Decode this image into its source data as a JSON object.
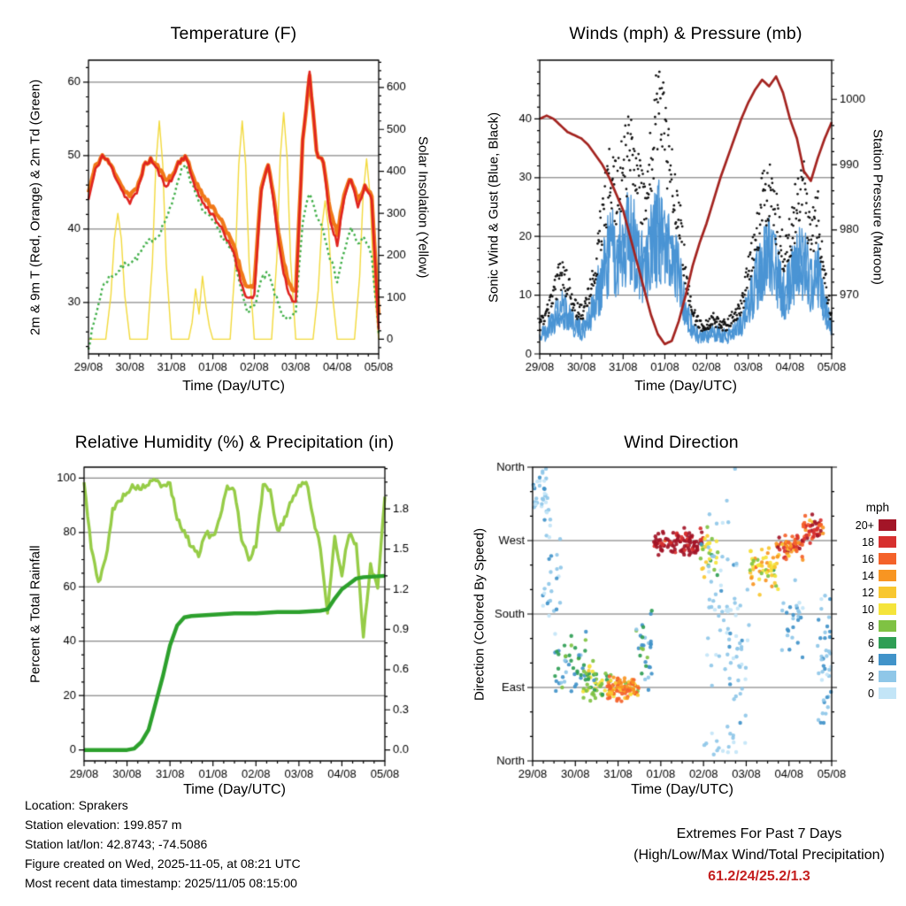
{
  "x_axis": {
    "label": "Time (Day/UTC)",
    "tick_hours": [
      0,
      24,
      48,
      72,
      96,
      120,
      144,
      168
    ],
    "tick_labels": [
      "29/08",
      "30/08",
      "31/08",
      "01/08",
      "02/08",
      "03/08",
      "04/08",
      "05/08"
    ],
    "minor_step_hours": 6,
    "range_hours": [
      0,
      168
    ],
    "sample_hours_step4": [
      0,
      4,
      8,
      12,
      16,
      20,
      24,
      28,
      32,
      36,
      40,
      44,
      48,
      52,
      56,
      60,
      64,
      68,
      72,
      76,
      80,
      84,
      88,
      92,
      96,
      100,
      104,
      108,
      112,
      116,
      120,
      124,
      128,
      132,
      136,
      140,
      144,
      148,
      152,
      156,
      160,
      164,
      168
    ]
  },
  "footer": {
    "lines": [
      "Location: Sprakers",
      "Station elevation: 199.857 m",
      "Station lat/lon: 42.8743; -74.5086",
      "Figure created on Wed, 2025-11-05, at 08:21 UTC",
      "Most recent data timestamp: 2025/11/05 08:15:00"
    ]
  },
  "extremes": {
    "title": "Extremes For Past 7 Days",
    "subtitle": "(High/Low/Max Wind/Total Precipitation)",
    "values": "61.2/24/25.2/1.3",
    "color": "#c41f1f"
  },
  "chart_data": [
    {
      "id": "temperature",
      "type": "line",
      "title": "Temperature (F)",
      "ylabel_left": "2m & 9m T (Red, Orange) & 2m Td (Green)",
      "ylabel_right": "Solar Insolation (Yellow)",
      "ylim_left": [
        23,
        63
      ],
      "yticks_left": [
        30,
        40,
        50,
        60
      ],
      "yminor_left": 2,
      "ylim_right": [
        -35,
        665
      ],
      "yticks_right": [
        0,
        100,
        200,
        300,
        400,
        500,
        600
      ],
      "yminor_right": 20,
      "gridlines_left": [
        30,
        40,
        50,
        60
      ],
      "series": [
        {
          "name": "9m_temp_orange",
          "color": "#f07818",
          "width": 4.4,
          "axis": "left",
          "y": [
            45,
            48.5,
            50,
            49,
            47.5,
            45.5,
            44.5,
            45.5,
            48.5,
            49.5,
            48.5,
            47,
            47,
            49,
            50,
            47.5,
            45.5,
            44,
            43,
            41.5,
            39.5,
            38,
            34.5,
            32,
            32.5,
            45.5,
            49,
            43,
            36.5,
            32.5,
            31.5,
            52,
            61,
            50.5,
            49,
            42.5,
            39.5,
            44.5,
            47,
            44,
            46,
            44.5,
            28
          ]
        },
        {
          "name": "2m_temp_red",
          "color": "#e02420",
          "width": 2.6,
          "axis": "left",
          "y": [
            44,
            48,
            50,
            49,
            47,
            45,
            43.5,
            45,
            48.5,
            49.5,
            48,
            46,
            46.5,
            49,
            50,
            47,
            44.5,
            43,
            42,
            40.5,
            38.5,
            37,
            33,
            30.5,
            31,
            45,
            49,
            42,
            35,
            31,
            30,
            52,
            61.5,
            50.5,
            49,
            41,
            38,
            44,
            47,
            43,
            46,
            44,
            26
          ]
        },
        {
          "name": "2m_dewpoint_green",
          "color": "#3fae47",
          "width": 2.4,
          "axis": "left",
          "dash": [
            2.5,
            3.2
          ],
          "y": [
            24,
            28,
            32,
            33.5,
            34,
            35,
            35.5,
            36,
            37.5,
            38.5,
            39,
            41,
            43,
            47,
            49,
            46,
            43.5,
            42,
            41,
            39.5,
            38,
            36.5,
            32,
            29,
            29.5,
            33,
            34,
            31,
            28.5,
            27.5,
            28.5,
            41,
            45,
            42,
            40,
            36,
            33,
            37,
            40,
            38,
            39,
            36,
            26
          ]
        }
      ],
      "solar": {
        "name": "solar_insolation_yellow",
        "color": "#f2d93b",
        "width": 1.4,
        "axis": "right",
        "x": [
          0,
          10,
          13,
          15,
          17,
          19,
          21,
          24,
          34,
          37,
          39,
          41,
          43,
          45,
          48,
          58,
          60,
          62,
          64,
          66,
          68,
          70,
          72,
          82,
          85,
          87,
          89,
          91,
          93,
          96,
          106,
          109,
          111,
          113,
          115,
          117,
          120,
          130,
          133,
          135,
          137,
          139,
          141,
          144,
          154,
          157,
          159,
          161,
          163,
          165,
          168
        ],
        "y": [
          0,
          0,
          105,
          240,
          300,
          240,
          105,
          0,
          0,
          182,
          416,
          520,
          416,
          182,
          0,
          0,
          40,
          120,
          60,
          150,
          80,
          30,
          0,
          0,
          182,
          416,
          520,
          416,
          182,
          0,
          0,
          189,
          432,
          540,
          432,
          189,
          0,
          0,
          116,
          264,
          330,
          264,
          116,
          0,
          0,
          150,
          344,
          430,
          344,
          150,
          0
        ]
      }
    },
    {
      "id": "winds_pressure",
      "type": "line",
      "title": "Winds (mph) & Pressure (mb)",
      "ylabel_left": "Sonic Wind & Gust (Blue, Black)",
      "ylabel_right": "Station Pressure (Maroon)",
      "ylim_left": [
        0,
        50
      ],
      "yticks_left": [
        0,
        10,
        20,
        30,
        40
      ],
      "yminor_left": 2,
      "ylim_right": [
        961,
        1006
      ],
      "yticks_right": [
        970,
        980,
        990,
        1000
      ],
      "yminor_right": 2,
      "gridlines_left": [
        10,
        20,
        30,
        40
      ],
      "wind": {
        "name": "sonic_wind_blue",
        "color": "#4a94d4",
        "envelope": [
          3,
          4,
          6,
          8,
          7,
          5,
          4,
          6,
          8,
          14,
          18,
          16,
          18,
          20,
          17,
          15,
          18,
          21,
          18,
          16,
          14,
          8,
          4,
          3,
          3,
          4,
          3,
          3,
          4,
          5,
          8,
          12,
          15,
          16,
          14,
          10,
          12,
          15,
          16,
          12,
          14,
          8,
          4
        ]
      },
      "gust": {
        "name": "gust_black",
        "color": "#111111",
        "envelope": [
          5,
          7,
          10,
          14,
          12,
          8,
          7,
          10,
          14,
          24,
          30,
          28,
          32,
          36,
          30,
          27,
          33,
          44,
          38,
          30,
          24,
          14,
          7,
          5,
          5,
          6,
          5,
          5,
          7,
          8,
          14,
          20,
          26,
          28,
          24,
          17,
          20,
          26,
          28,
          20,
          24,
          13,
          6
        ]
      },
      "pressure": {
        "name": "station_pressure_maroon",
        "color": "#a3231f",
        "width": 2.7,
        "y": [
          997,
          997.5,
          997,
          996,
          995,
          994.5,
          994,
          993,
          991.5,
          990,
          988,
          985.5,
          983,
          979,
          975,
          971,
          967,
          964,
          962.5,
          963,
          966,
          970,
          974.5,
          978,
          981,
          984.5,
          988,
          991,
          994,
          997,
          999.5,
          1001.5,
          1003,
          1002,
          1003.5,
          1001,
          997,
          994,
          989,
          987.5,
          991,
          994,
          996.5
        ]
      }
    },
    {
      "id": "rh_precip",
      "type": "line",
      "title": "Relative Humidity (%) & Precipitation (in)",
      "ylabel_left": "Percent & Total Rainfall",
      "ylim_left": [
        -4,
        104
      ],
      "yticks_left": [
        0,
        20,
        40,
        60,
        80,
        100
      ],
      "yminor_left": 5,
      "ylim_right": [
        -0.0812,
        2.1112
      ],
      "yticks_right": [
        0.0,
        0.3,
        0.6,
        0.9,
        1.2,
        1.5,
        1.8
      ],
      "yticks_right_labels": [
        "0.0",
        "0.3",
        "0.6",
        "0.9",
        "1.2",
        "1.5",
        "1.8"
      ],
      "yminor_right": 0.1,
      "gridlines_left": [
        20,
        40,
        60,
        80,
        100
      ],
      "humidity": {
        "name": "relative_humidity_light_green",
        "color": "#96cc47",
        "width": 3.4,
        "y": [
          98,
          75,
          61,
          70,
          88,
          92,
          95,
          97,
          96,
          98,
          99,
          97,
          98,
          85,
          80,
          75,
          72,
          80,
          78,
          85,
          97,
          96,
          78,
          70,
          75,
          97,
          96,
          80,
          85,
          92,
          97,
          99,
          85,
          75,
          50,
          78,
          65,
          80,
          75,
          42,
          68,
          60,
          93
        ]
      },
      "rainfall": {
        "name": "total_rainfall_dark_green",
        "color": "#2ca02c",
        "width": 4.4,
        "x": [
          0,
          24,
          28,
          32,
          36,
          40,
          44,
          48,
          52,
          56,
          60,
          72,
          84,
          96,
          108,
          120,
          132,
          136,
          140,
          144,
          148,
          152,
          156,
          168
        ],
        "y": [
          0,
          0,
          0.01,
          0.06,
          0.15,
          0.35,
          0.55,
          0.78,
          0.93,
          0.99,
          1.0,
          1.01,
          1.02,
          1.02,
          1.03,
          1.03,
          1.04,
          1.05,
          1.13,
          1.2,
          1.24,
          1.28,
          1.29,
          1.3
        ]
      }
    },
    {
      "id": "wind_direction",
      "type": "scatter",
      "title": "Wind Direction",
      "ylabel_left": "Direction (Colored By Speed)",
      "ylim": [
        0,
        360
      ],
      "yticks": [
        {
          "value": 360,
          "label": "North"
        },
        {
          "value": 270,
          "label": "West"
        },
        {
          "value": 180,
          "label": "South"
        },
        {
          "value": 90,
          "label": "East"
        },
        {
          "value": 0,
          "label": "North"
        }
      ],
      "yminor": 30,
      "gridlines": [
        90,
        180,
        270
      ],
      "legend": {
        "title": "mph",
        "entries": [
          {
            "label": "20+",
            "color": "#a31527"
          },
          {
            "label": "18",
            "color": "#d7302f"
          },
          {
            "label": "16",
            "color": "#f4622a"
          },
          {
            "label": "14",
            "color": "#f89522"
          },
          {
            "label": "12",
            "color": "#f8c730"
          },
          {
            "label": "10",
            "color": "#f5e43b"
          },
          {
            "label": "8",
            "color": "#7fc243"
          },
          {
            "label": "6",
            "color": "#2f9e55"
          },
          {
            "label": "4",
            "color": "#4193c9"
          },
          {
            "label": "2",
            "color": "#8fc7e8"
          },
          {
            "label": "0",
            "color": "#c3e5f7"
          }
        ]
      },
      "speed_bin_colors": [
        "#c3e5f7",
        "#8fc7e8",
        "#4193c9",
        "#2f9e55",
        "#7fc243",
        "#f5e43b",
        "#f8c730",
        "#f89522",
        "#f4622a",
        "#d7302f",
        "#a31527"
      ],
      "clusters": [
        {
          "t": [
            0,
            10
          ],
          "dir": 320,
          "dspread": 38,
          "speed": 3,
          "sspread": 2,
          "n": 35
        },
        {
          "t": [
            4,
            16
          ],
          "dir": 220,
          "dspread": 55,
          "speed": 3,
          "sspread": 2,
          "n": 25
        },
        {
          "t": [
            12,
            30
          ],
          "dir": 120,
          "dspread": 35,
          "speed": 6,
          "sspread": 3,
          "n": 45
        },
        {
          "t": [
            28,
            44
          ],
          "dir": 95,
          "dspread": 20,
          "speed": 9,
          "sspread": 3,
          "n": 55
        },
        {
          "t": [
            42,
            60
          ],
          "dir": 88,
          "dspread": 13,
          "speed": 15,
          "sspread": 4,
          "n": 90
        },
        {
          "t": [
            58,
            68
          ],
          "dir": 140,
          "dspread": 55,
          "speed": 6,
          "sspread": 3,
          "n": 30
        },
        {
          "t": [
            68,
            96
          ],
          "dir": 268,
          "dspread": 12,
          "speed": 21,
          "sspread": 3,
          "n": 110
        },
        {
          "t": [
            94,
            104
          ],
          "dir": 250,
          "dspread": 30,
          "speed": 10,
          "sspread": 4,
          "n": 30
        },
        {
          "t": [
            98,
            110
          ],
          "dir": 200,
          "dspread": 85,
          "speed": 2.5,
          "sspread": 1.5,
          "n": 40
        },
        {
          "t": [
            110,
            122
          ],
          "dir": 140,
          "dspread": 80,
          "speed": 3,
          "sspread": 2,
          "n": 40
        },
        {
          "t": [
            96,
            120
          ],
          "dir": 20,
          "dspread": 16,
          "speed": 2,
          "sspread": 1,
          "n": 18
        },
        {
          "t": [
            122,
            138
          ],
          "dir": 235,
          "dspread": 22,
          "speed": 12,
          "sspread": 4,
          "n": 60
        },
        {
          "t": [
            136,
            152
          ],
          "dir": 262,
          "dspread": 14,
          "speed": 17,
          "sspread": 4,
          "n": 60
        },
        {
          "t": [
            140,
            152
          ],
          "dir": 180,
          "dspread": 45,
          "speed": 4,
          "sspread": 2,
          "n": 25
        },
        {
          "t": [
            152,
            164
          ],
          "dir": 285,
          "dspread": 14,
          "speed": 18,
          "sspread": 4,
          "n": 50
        },
        {
          "t": [
            160,
            168
          ],
          "dir": 120,
          "dspread": 70,
          "speed": 4,
          "sspread": 2,
          "n": 40
        }
      ]
    }
  ]
}
